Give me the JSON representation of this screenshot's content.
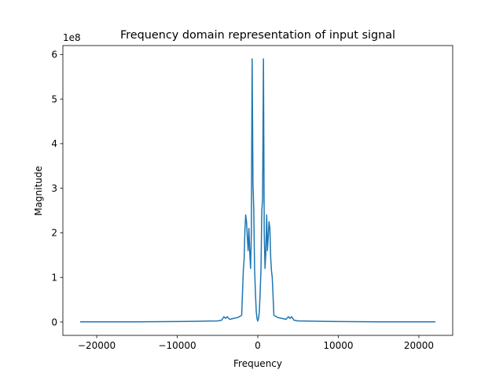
{
  "chart_data": {
    "type": "line",
    "title": "Frequency domain representation of input signal",
    "xlabel": "Frequency",
    "ylabel": "Magnitude",
    "y_offset_label": "1e8",
    "xlim": [
      -24200,
      24200
    ],
    "ylim": [
      -30000000.0,
      620000000.0
    ],
    "x_ticks": [
      -20000,
      -10000,
      0,
      10000,
      20000
    ],
    "x_tick_labels": [
      "−20000",
      "−10000",
      "0",
      "10000",
      "20000"
    ],
    "y_ticks": [
      0,
      100000000,
      200000000,
      300000000,
      400000000,
      500000000,
      600000000
    ],
    "y_tick_labels": [
      "0",
      "1",
      "2",
      "3",
      "4",
      "5",
      "6"
    ],
    "grid": false,
    "line_color": "#1f77b4",
    "series": [
      {
        "x": [
          -22050,
          -20000,
          -15000,
          -10000,
          -8000,
          -6000,
          -5000,
          -4500,
          -4200,
          -4000,
          -3800,
          -3500,
          -3000,
          -2500,
          -2000,
          -1800,
          -1700,
          -1600,
          -1500,
          -1400,
          -1300,
          -1200,
          -1100,
          -1000,
          -900,
          -800,
          -700,
          -600,
          -500,
          -400,
          -300,
          -200,
          -100,
          0,
          100,
          200,
          300,
          400,
          500,
          600,
          700,
          800,
          900,
          1000,
          1100,
          1200,
          1300,
          1400,
          1500,
          1600,
          1700,
          1800,
          2000,
          2500,
          3000,
          3500,
          3800,
          4000,
          4200,
          4500,
          5000,
          6000,
          8000,
          10000,
          15000,
          20000,
          22050
        ],
        "y": [
          500000,
          300000,
          500000,
          1000000,
          1500000,
          2000000,
          2500000,
          4000000,
          12000000,
          8000000,
          12000000,
          6000000,
          8000000,
          10000000,
          15000000,
          116000000,
          140000000,
          205000000,
          240000000,
          225000000,
          190000000,
          160000000,
          210000000,
          155000000,
          120000000,
          200000000,
          590000000,
          310000000,
          250000000,
          120000000,
          70000000,
          25000000,
          8000000,
          2000000,
          8000000,
          25000000,
          70000000,
          120000000,
          250000000,
          275000000,
          590000000,
          200000000,
          120000000,
          155000000,
          240000000,
          160000000,
          190000000,
          225000000,
          210000000,
          145000000,
          115000000,
          100000000,
          15000000,
          10000000,
          8000000,
          6000000,
          12000000,
          8000000,
          12000000,
          4000000,
          2500000,
          2000000,
          1500000,
          1000000,
          500000,
          300000,
          500000
        ]
      }
    ]
  }
}
